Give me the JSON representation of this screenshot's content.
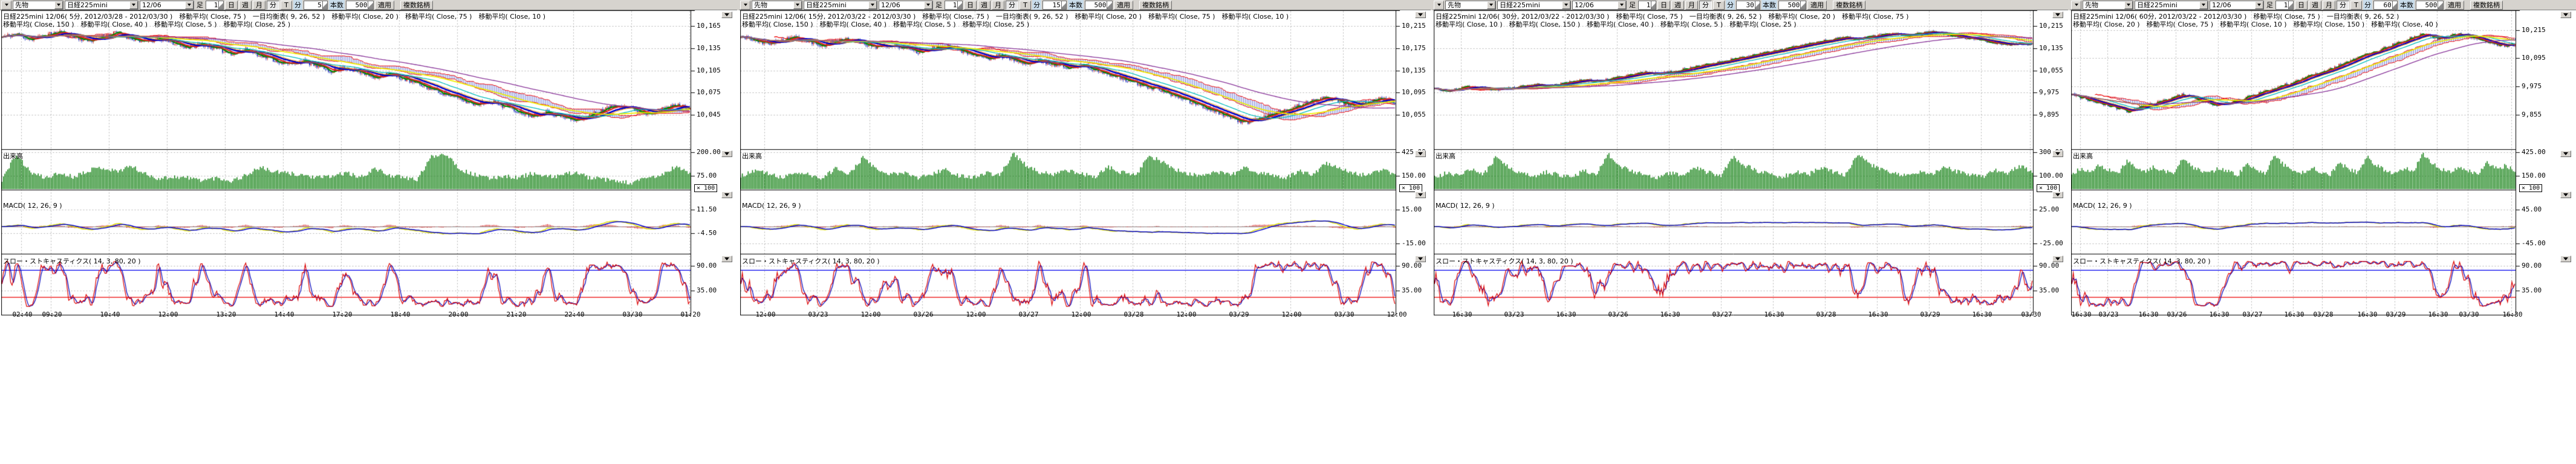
{
  "panels": [
    {
      "toolbar": {
        "menu_icon": "chevron-down-icon",
        "category": "先物",
        "symbol": "日経225mini",
        "contract": "12/06",
        "ashi_label": "足",
        "ashi_value": "1",
        "period_buttons": [
          "日",
          "週",
          "月",
          "分",
          "T"
        ],
        "active_period": "分",
        "minutes_label": "分",
        "minutes_value": "5",
        "bars_label": "本数",
        "bars_value": "500",
        "apply_label": "適用",
        "multi_symbol_label": "複数銘柄"
      },
      "legend_line1": "日経225mini 12/06( 5分, 2012/03/28 - 2012/03/30 )　移動平均( Close, 75 )　一目均衡表( 9, 26, 52 )　移動平均( Close, 20 )　移動平均( Close, 75 )　移動平均( Close, 10 )",
      "legend_line2": "移動平均( Close, 150 )　移動平均( Close, 40 )　移動平均( Close, 5 )　移動平均( Close, 25 )",
      "volume_label": "出来高",
      "macd_label": "MACD( 12, 26, 9 )",
      "stoch_label": "スロー・ストキャスティクス( 14, 3, 80, 20 )",
      "volume_unit": "× 100"
    },
    {
      "toolbar": {
        "menu_icon": "chevron-down-icon",
        "category": "先物",
        "symbol": "日経225mini",
        "contract": "12/06",
        "ashi_label": "足",
        "ashi_value": "1",
        "period_buttons": [
          "日",
          "週",
          "月",
          "分",
          "T"
        ],
        "active_period": "分",
        "minutes_label": "分",
        "minutes_value": "15",
        "bars_label": "本数",
        "bars_value": "500",
        "apply_label": "適用",
        "multi_symbol_label": "複数銘柄"
      },
      "legend_line1": "日経225mini 12/06( 15分, 2012/03/22 - 2012/03/30 )　移動平均( Close, 75 )　一目均衡表( 9, 26, 52 )　移動平均( Close, 20 )　移動平均( Close, 75 )　移動平均( Close, 10 )",
      "legend_line2": "移動平均( Close, 150 )　移動平均( Close, 40 )　移動平均( Close, 5 )　移動平均( Close, 25 )",
      "volume_label": "出来高",
      "macd_label": "MACD( 12, 26, 9 )",
      "stoch_label": "スロー・ストキャスティクス( 14, 3, 80, 20 )",
      "volume_unit": "× 100"
    },
    {
      "toolbar": {
        "menu_icon": "chevron-down-icon",
        "category": "先物",
        "symbol": "日経225mini",
        "contract": "12/06",
        "ashi_label": "足",
        "ashi_value": "1",
        "period_buttons": [
          "日",
          "週",
          "月",
          "分",
          "T"
        ],
        "active_period": "分",
        "minutes_label": "分",
        "minutes_value": "30",
        "bars_label": "本数",
        "bars_value": "500",
        "apply_label": "適用",
        "multi_symbol_label": "複数銘柄"
      },
      "legend_line1": "日経225mini 12/06( 30分, 2012/03/22 - 2012/03/30 )　移動平均( Close, 75 )　一目均衡表( 9, 26, 52 )　移動平均( Close, 20 )　移動平均( Close, 75 )",
      "legend_line2": "移動平均( Close, 10 )　移動平均( Close, 150 )　移動平均( Close, 40 )　移動平均( Close, 5 )　移動平均( Close, 25 )",
      "volume_label": "出来高",
      "macd_label": "MACD( 12, 26, 9 )",
      "stoch_label": "スロー・ストキャスティクス( 14, 3, 80, 20 )",
      "volume_unit": "× 100"
    },
    {
      "toolbar": {
        "menu_icon": "chevron-down-icon",
        "category": "先物",
        "symbol": "日経225mini",
        "contract": "12/06",
        "ashi_label": "足",
        "ashi_value": "1",
        "period_buttons": [
          "日",
          "週",
          "月",
          "分",
          "T"
        ],
        "active_period": "分",
        "minutes_label": "分",
        "minutes_value": "60",
        "bars_label": "本数",
        "bars_value": "500",
        "apply_label": "適用",
        "multi_symbol_label": "複数銘柄"
      },
      "legend_line1": "日経225mini 12/06( 60分, 2012/03/22 - 2012/03/30 )　移動平均( Close, 75 )　一目均衡表( 9, 26, 52 )",
      "legend_line2": "移動平均( Close, 20 )　移動平均( Close, 75 )　移動平均( Close, 10 )　移動平均( Close, 150 )　移動平均( Close, 40 )",
      "volume_label": "出来高",
      "macd_label": "MACD( 12, 26, 9 )",
      "stoch_label": "スロー・ストキャスティクス( 14, 3, 80, 20 )",
      "volume_unit": "× 100"
    }
  ],
  "colors": {
    "up_candle": "#cc2222",
    "down_candle": "#2233bb",
    "volume_bar": "#007700",
    "macd_line": "#dddd00",
    "macd_signal": "#0000cc",
    "macd_hist": "#cc0000",
    "stoch_k": "#dd0000",
    "stoch_d": "#0000bb",
    "overbought_line": "#0000ee",
    "oversold_line": "#ee0000",
    "cloud_border": "#ee0000",
    "cloud_hatch": "#4455cc",
    "toolbar_bg": "#d6d3ce",
    "highlight_label_bg": "#c9dcea"
  },
  "chart_data": [
    {
      "type": "candlestick",
      "title": "日経225mini 12/06( 5分, 2012/03/28 - 2012/03/30 )",
      "symbol": "日経225mini",
      "contract_month": "12/06",
      "timeframe": "5分",
      "date_range": "2012/03/28 - 2012/03/30",
      "bars": "500",
      "moving_averages": [
        5,
        10,
        20,
        25,
        40,
        75,
        150
      ],
      "ichimoku_params": [
        9,
        26,
        52
      ],
      "macd_params": [
        12,
        26,
        9
      ],
      "slow_stochastics_params": [
        14,
        3,
        80,
        20
      ],
      "price_axis_ticks": [
        "10,165",
        "10,135",
        "10,105",
        "10,075",
        "10,045"
      ],
      "volume_axis_ticks": [
        "200.00",
        "75.00"
      ],
      "volume_unit": "× 100",
      "macd_axis_ticks": [
        "11.50",
        "-4.50"
      ],
      "stoch_axis_ticks": [
        "90.00",
        "35.00"
      ],
      "time_axis_ticks": [
        "02:40",
        "09:20",
        "10:40",
        "12:00",
        "13:20",
        "14:40",
        "17:20",
        "18:40",
        "20:00",
        "21:20",
        "22:40",
        "03/30",
        "01:20"
      ],
      "close_path": [
        10150,
        10154,
        10147,
        10152,
        10157,
        10151,
        10145,
        10150,
        10156,
        10149,
        10143,
        10148,
        10142,
        10136,
        10141,
        10134,
        10128,
        10133,
        10126,
        10119,
        10113,
        10118,
        10111,
        10104,
        10109,
        10102,
        10096,
        10101,
        10094,
        10087,
        10080,
        10073,
        10066,
        10059,
        10064,
        10057,
        10050,
        10044,
        10049,
        10043,
        10037,
        10044,
        10052,
        10059,
        10053,
        10047,
        10052,
        10058,
        10054
      ],
      "volume_path": [
        0.25,
        0.92,
        0.45,
        0.3,
        0.42,
        0.33,
        0.5,
        0.58,
        0.47,
        0.62,
        0.4,
        0.28,
        0.33,
        0.3,
        0.24,
        0.3,
        0.22,
        0.36,
        0.58,
        0.46,
        0.42,
        0.38,
        0.3,
        0.34,
        0.44,
        0.3,
        0.55,
        0.38,
        0.3,
        0.26,
        0.88,
        0.95,
        0.52,
        0.38,
        0.28,
        0.36,
        0.3,
        0.42,
        0.32,
        0.36,
        0.46,
        0.3,
        0.26,
        0.2,
        0.16,
        0.3,
        0.36,
        0.6,
        0.42
      ]
    },
    {
      "type": "candlestick",
      "title": "日経225mini 12/06( 15分, 2012/03/22 - 2012/03/30 )",
      "symbol": "日経225mini",
      "contract_month": "12/06",
      "timeframe": "15分",
      "date_range": "2012/03/22 - 2012/03/30",
      "bars": "500",
      "moving_averages": [
        5,
        10,
        20,
        25,
        40,
        75,
        150
      ],
      "ichimoku_params": [
        9,
        26,
        52
      ],
      "macd_params": [
        12,
        26,
        9
      ],
      "slow_stochastics_params": [
        14,
        3,
        80,
        20
      ],
      "price_axis_ticks": [
        "10,215",
        "10,175",
        "10,135",
        "10,095",
        "10,055"
      ],
      "volume_axis_ticks": [
        "425.00",
        "150.00"
      ],
      "volume_unit": "× 100",
      "macd_axis_ticks": [
        "15.00",
        "-15.00"
      ],
      "stoch_axis_ticks": [
        "90.00",
        "35.00"
      ],
      "time_axis_ticks": [
        "12:00",
        "03/23",
        "12:00",
        "03/26",
        "12:00",
        "03/27",
        "12:00",
        "03/28",
        "12:00",
        "03/29",
        "12:00",
        "03/30",
        "12:00"
      ],
      "close_path": [
        10196,
        10190,
        10183,
        10189,
        10194,
        10187,
        10180,
        10186,
        10191,
        10184,
        10177,
        10182,
        10175,
        10168,
        10174,
        10179,
        10171,
        10163,
        10156,
        10162,
        10155,
        10148,
        10153,
        10146,
        10139,
        10144,
        10137,
        10129,
        10121,
        10113,
        10105,
        10097,
        10088,
        10079,
        10070,
        10060,
        10050,
        10041,
        10047,
        10055,
        10063,
        10072,
        10080,
        10087,
        10079,
        10071,
        10077,
        10084,
        10079
      ],
      "volume_path": [
        0.35,
        0.5,
        0.42,
        0.3,
        0.46,
        0.38,
        0.3,
        0.55,
        0.42,
        0.85,
        0.5,
        0.38,
        0.46,
        0.3,
        0.4,
        0.52,
        0.36,
        0.3,
        0.44,
        0.36,
        0.95,
        0.6,
        0.45,
        0.38,
        0.5,
        0.4,
        0.34,
        0.58,
        0.44,
        0.36,
        0.9,
        0.7,
        0.5,
        0.4,
        0.34,
        0.46,
        0.38,
        0.56,
        0.44,
        0.36,
        0.3,
        0.48,
        0.4,
        0.7,
        0.55,
        0.42,
        0.36,
        0.52,
        0.4
      ]
    },
    {
      "type": "candlestick",
      "title": "日経225mini 12/06( 30分, 2012/03/22 - 2012/03/30 )",
      "symbol": "日経225mini",
      "contract_month": "12/06",
      "timeframe": "30分",
      "date_range": "2012/03/22 - 2012/03/30",
      "bars": "500",
      "moving_averages": [
        5,
        10,
        20,
        25,
        40,
        75,
        150
      ],
      "ichimoku_params": [
        9,
        26,
        52
      ],
      "macd_params": [
        12,
        26,
        9
      ],
      "slow_stochastics_params": [
        14,
        3,
        80,
        20
      ],
      "price_axis_ticks": [
        "10,215",
        "10,135",
        "10,055",
        "9,975",
        "9,895"
      ],
      "volume_axis_ticks": [
        "300.00",
        "100.00"
      ],
      "volume_unit": "× 100",
      "macd_axis_ticks": [
        "25.00",
        "-25.00"
      ],
      "stoch_axis_ticks": [
        "90.00",
        "35.00"
      ],
      "time_axis_ticks": [
        "16:30",
        "03/23",
        "16:30",
        "03/26",
        "16:30",
        "03/27",
        "16:30",
        "03/28",
        "16:30",
        "03/29",
        "16:30",
        "03/30"
      ],
      "close_path": [
        9988,
        9982,
        9990,
        9997,
        9990,
        9984,
        9991,
        9998,
        10005,
        9998,
        10006,
        10014,
        10022,
        10015,
        10023,
        10031,
        10040,
        10048,
        10041,
        10050,
        10059,
        10068,
        10077,
        10086,
        10095,
        10104,
        10113,
        10122,
        10131,
        10140,
        10149,
        10158,
        10166,
        10174,
        10167,
        10175,
        10182,
        10189,
        10181,
        10188,
        10194,
        10186,
        10178,
        10170,
        10162,
        10154,
        10147,
        10152,
        10148
      ],
      "volume_path": [
        0.3,
        0.44,
        0.36,
        0.52,
        0.4,
        0.88,
        0.56,
        0.42,
        0.34,
        0.46,
        0.38,
        0.3,
        0.5,
        0.4,
        0.92,
        0.6,
        0.46,
        0.38,
        0.3,
        0.44,
        0.36,
        0.56,
        0.44,
        0.36,
        0.85,
        0.62,
        0.48,
        0.38,
        0.32,
        0.46,
        0.38,
        0.58,
        0.46,
        0.38,
        0.95,
        0.65,
        0.5,
        0.4,
        0.34,
        0.48,
        0.4,
        0.6,
        0.46,
        0.38,
        0.32,
        0.5,
        0.42,
        0.62,
        0.45
      ]
    },
    {
      "type": "candlestick",
      "title": "日経225mini 12/06( 60分, 2012/03/22 - 2012/03/30 )",
      "symbol": "日経225mini",
      "contract_month": "12/06",
      "timeframe": "60分",
      "date_range": "2012/03/22 - 2012/03/30",
      "bars": "500",
      "moving_averages": [
        5,
        10,
        20,
        25,
        40,
        75,
        150
      ],
      "ichimoku_params": [
        9,
        26,
        52
      ],
      "macd_params": [
        12,
        26,
        9
      ],
      "slow_stochastics_params": [
        14,
        3,
        80,
        20
      ],
      "price_axis_ticks": [
        "10,215",
        "10,095",
        "9,975",
        "9,855"
      ],
      "volume_axis_ticks": [
        "425.00",
        "150.00"
      ],
      "volume_unit": "× 100",
      "macd_axis_ticks": [
        "45.00",
        "-45.00"
      ],
      "stoch_axis_ticks": [
        "90.00",
        "35.00"
      ],
      "time_axis_ticks": [
        "16:30",
        "03/23",
        "16:30",
        "03/26",
        "16:30",
        "03/27",
        "16:30",
        "03/28",
        "16:30",
        "03/29",
        "16:30",
        "03/30",
        "16:30"
      ],
      "close_path": [
        9942,
        9930,
        9918,
        9906,
        9894,
        9882,
        9871,
        9880,
        9892,
        9904,
        9916,
        9928,
        9940,
        9930,
        9918,
        9906,
        9896,
        9905,
        9916,
        9928,
        9941,
        9954,
        9967,
        9980,
        9994,
        10008,
        10022,
        10036,
        10050,
        10065,
        10080,
        10095,
        10110,
        10125,
        10140,
        10155,
        10170,
        10184,
        10196,
        10188,
        10178,
        10190,
        10200,
        10192,
        10180,
        10168,
        10157,
        10148,
        10153
      ],
      "volume_path": [
        0.4,
        0.55,
        0.45,
        0.65,
        0.5,
        0.42,
        0.75,
        0.55,
        0.46,
        0.6,
        0.48,
        0.4,
        0.85,
        0.6,
        0.5,
        0.42,
        0.56,
        0.46,
        0.38,
        0.66,
        0.52,
        0.42,
        0.92,
        0.64,
        0.52,
        0.44,
        0.58,
        0.46,
        0.4,
        0.7,
        0.54,
        0.44,
        0.88,
        0.62,
        0.5,
        0.42,
        0.56,
        0.46,
        0.95,
        0.68,
        0.54,
        0.44,
        0.6,
        0.48,
        0.4,
        0.72,
        0.55,
        0.62,
        0.48
      ]
    }
  ]
}
